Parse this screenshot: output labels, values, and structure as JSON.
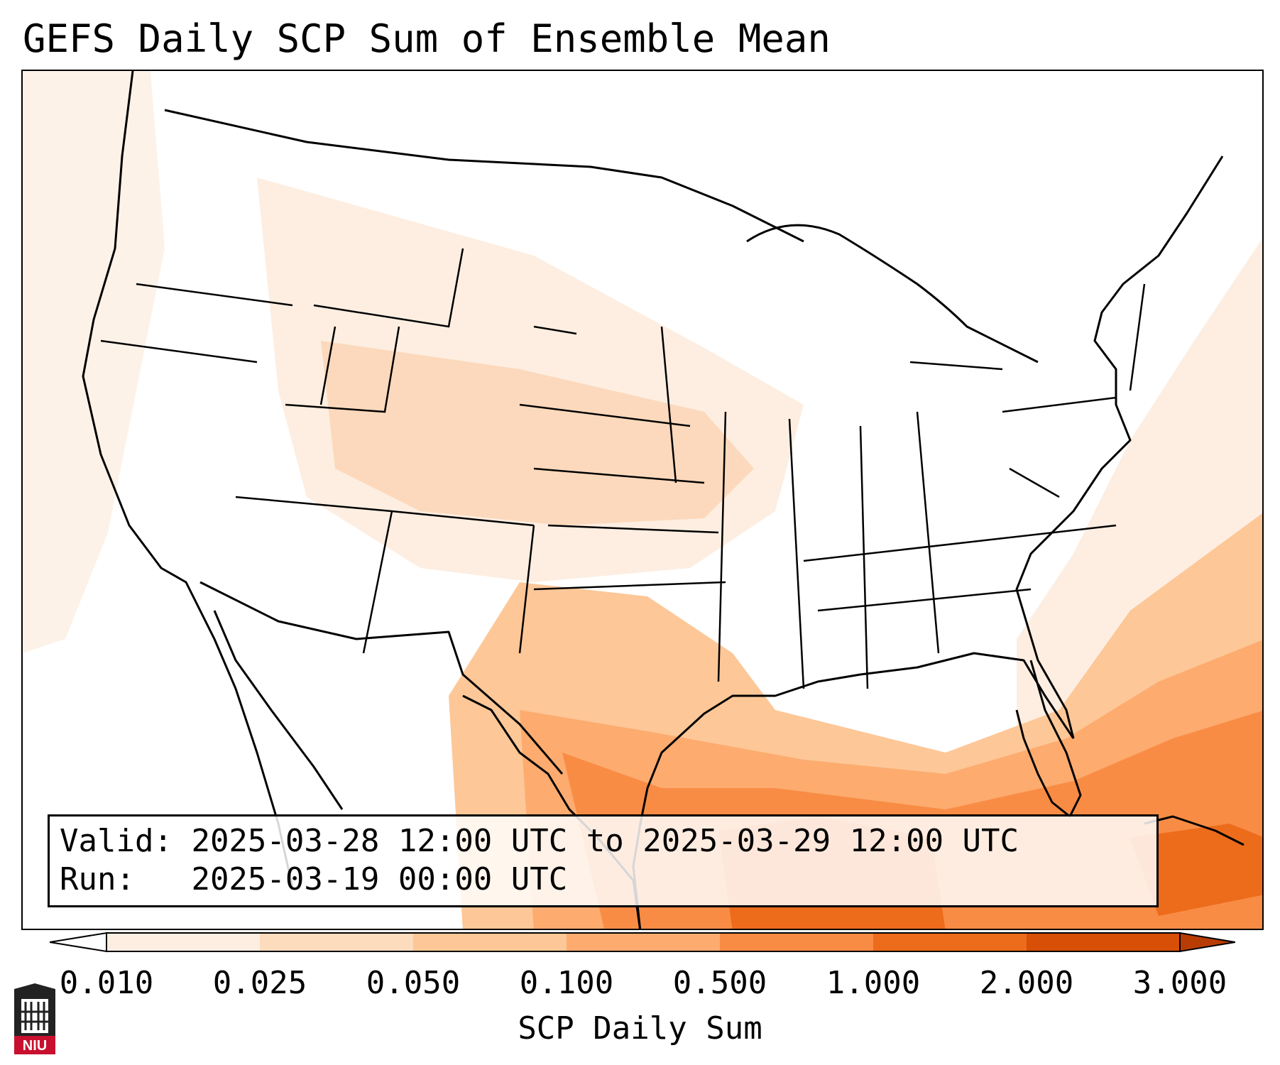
{
  "title": "GEFS Daily SCP Sum of Ensemble Mean",
  "info": {
    "valid_label": "Valid:",
    "valid_value": "2025-03-28 12:00 UTC to 2025-03-29 12:00 UTC",
    "run_label": "Run:",
    "run_value": "2025-03-19 00:00 UTC"
  },
  "colorbar": {
    "label": "SCP Daily Sum",
    "ticks": [
      "0.010",
      "0.025",
      "0.050",
      "0.100",
      "0.500",
      "1.000",
      "2.000",
      "3.000"
    ],
    "colors": [
      "#fdeee1",
      "#fddbbd",
      "#fdc797",
      "#fdab6f",
      "#f98c45",
      "#ec6c1c",
      "#d84f08",
      "#b83d04"
    ],
    "extend": "both"
  },
  "logo": {
    "text": "NIU"
  }
}
